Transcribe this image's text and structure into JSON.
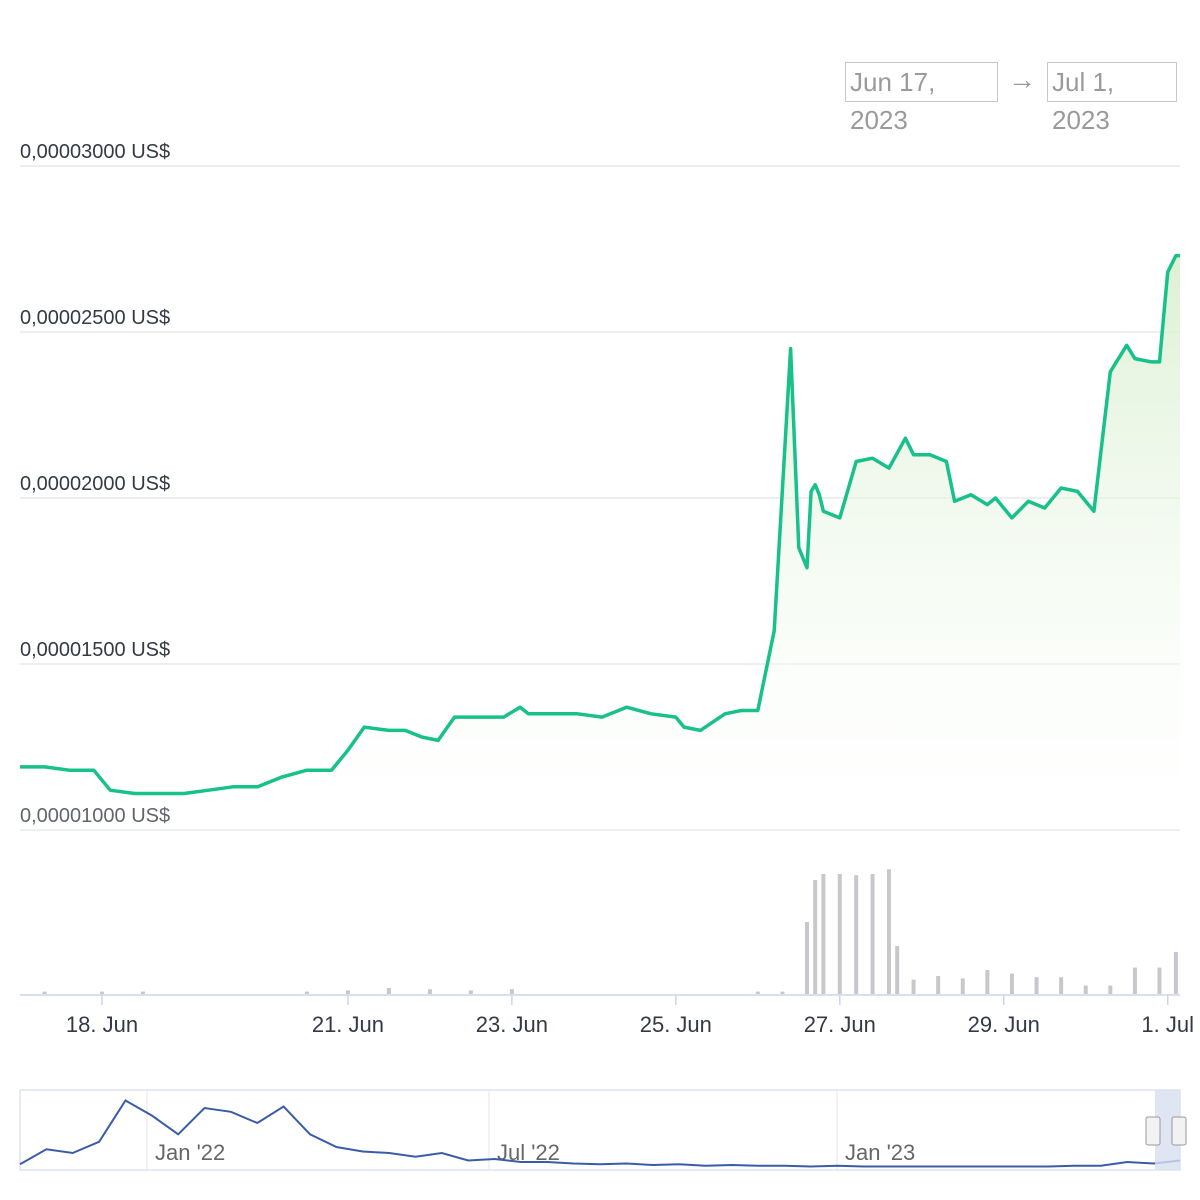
{
  "range_selector": {
    "from": "Jun 17, 2023",
    "arrow": "→",
    "to": "Jul 1, 2023"
  },
  "colors": {
    "price_line": "#18c08a",
    "area_top": "#d8efcf",
    "volume": "#c8c8cc",
    "navigator_line": "#3a5ca8",
    "navigator_mask": "#d7def0"
  },
  "chart_data": {
    "type": "line",
    "title": "",
    "x_ticks": [
      "18. Jun",
      "21. Jun",
      "23. Jun",
      "25. Jun",
      "27. Jun",
      "29. Jun",
      "1. Jul"
    ],
    "y_ticks": [
      "0,00001000 US$",
      "0,00001500 US$",
      "0,00002000 US$",
      "0,00002500 US$",
      "0,00003000 US$"
    ],
    "ylim": [
      1e-05,
      3e-05
    ],
    "xlim_days": [
      17.0,
      31.15
    ],
    "x_unit": "day of June 2023",
    "series": [
      {
        "type": "line",
        "x": [
          17.0,
          17.3,
          17.6,
          17.9,
          18.1,
          18.4,
          18.7,
          19.0,
          19.3,
          19.6,
          19.9,
          20.2,
          20.5,
          20.8,
          21.0,
          21.2,
          21.5,
          21.7,
          21.9,
          22.1,
          22.3,
          22.6,
          22.9,
          23.1,
          23.2,
          23.5,
          23.8,
          24.1,
          24.4,
          24.7,
          25.0,
          25.1,
          25.3,
          25.6,
          25.8,
          26.0,
          26.2,
          26.4,
          26.5,
          26.6,
          26.65,
          26.7,
          26.75,
          26.8,
          27.0,
          27.2,
          27.4,
          27.6,
          27.8,
          27.9,
          28.1,
          28.3,
          28.4,
          28.6,
          28.8,
          28.9,
          29.1,
          29.3,
          29.5,
          29.7,
          29.9,
          30.1,
          30.3,
          30.5,
          30.6,
          30.8,
          30.9,
          31.0,
          31.1,
          31.15
        ],
        "values": [
          1.19e-05,
          1.19e-05,
          1.18e-05,
          1.18e-05,
          1.12e-05,
          1.11e-05,
          1.11e-05,
          1.11e-05,
          1.12e-05,
          1.13e-05,
          1.13e-05,
          1.16e-05,
          1.18e-05,
          1.18e-05,
          1.24e-05,
          1.31e-05,
          1.3e-05,
          1.3e-05,
          1.28e-05,
          1.27e-05,
          1.34e-05,
          1.34e-05,
          1.34e-05,
          1.37e-05,
          1.35e-05,
          1.35e-05,
          1.35e-05,
          1.34e-05,
          1.37e-05,
          1.35e-05,
          1.34e-05,
          1.31e-05,
          1.3e-05,
          1.35e-05,
          1.36e-05,
          1.36e-05,
          1.6e-05,
          2.45e-05,
          1.85e-05,
          1.79e-05,
          2.02e-05,
          2.04e-05,
          2.01e-05,
          1.96e-05,
          1.94e-05,
          2.11e-05,
          2.12e-05,
          2.09e-05,
          2.18e-05,
          2.13e-05,
          2.13e-05,
          2.11e-05,
          1.99e-05,
          2.01e-05,
          1.98e-05,
          2e-05,
          1.94e-05,
          1.99e-05,
          1.97e-05,
          2.03e-05,
          2.02e-05,
          1.96e-05,
          2.38e-05,
          2.46e-05,
          2.42e-05,
          2.41e-05,
          2.41e-05,
          2.68e-05,
          2.73e-05,
          2.73e-05
        ]
      },
      {
        "type": "volume",
        "x": [
          17.3,
          18.0,
          18.5,
          20.5,
          21.0,
          21.5,
          22.0,
          22.5,
          23.0,
          26.0,
          26.3,
          26.6,
          26.7,
          26.8,
          27.0,
          27.2,
          27.4,
          27.6,
          27.7,
          27.9,
          28.2,
          28.5,
          28.8,
          29.1,
          29.4,
          29.7,
          30.0,
          30.3,
          30.6,
          30.9,
          31.1
        ],
        "values": [
          0.02,
          0.02,
          0.02,
          0.02,
          0.03,
          0.05,
          0.04,
          0.03,
          0.04,
          0.02,
          0.02,
          0.6,
          0.95,
          1.0,
          1.0,
          0.99,
          1.0,
          1.04,
          0.4,
          0.12,
          0.15,
          0.13,
          0.2,
          0.17,
          0.14,
          0.14,
          0.07,
          0.07,
          0.22,
          0.22,
          0.35
        ]
      }
    ]
  },
  "navigator": {
    "labels": [
      "Jan '22",
      "Jul '22",
      "Jan '23"
    ],
    "line_values": [
      0.05,
      0.25,
      0.2,
      0.35,
      0.9,
      0.7,
      0.45,
      0.8,
      0.75,
      0.6,
      0.82,
      0.45,
      0.28,
      0.22,
      0.2,
      0.15,
      0.2,
      0.1,
      0.12,
      0.08,
      0.08,
      0.06,
      0.05,
      0.06,
      0.04,
      0.05,
      0.03,
      0.04,
      0.03,
      0.03,
      0.02,
      0.03,
      0.02,
      0.02,
      0.02,
      0.02,
      0.02,
      0.02,
      0.02,
      0.02,
      0.03,
      0.03,
      0.08,
      0.06,
      0.1
    ]
  }
}
